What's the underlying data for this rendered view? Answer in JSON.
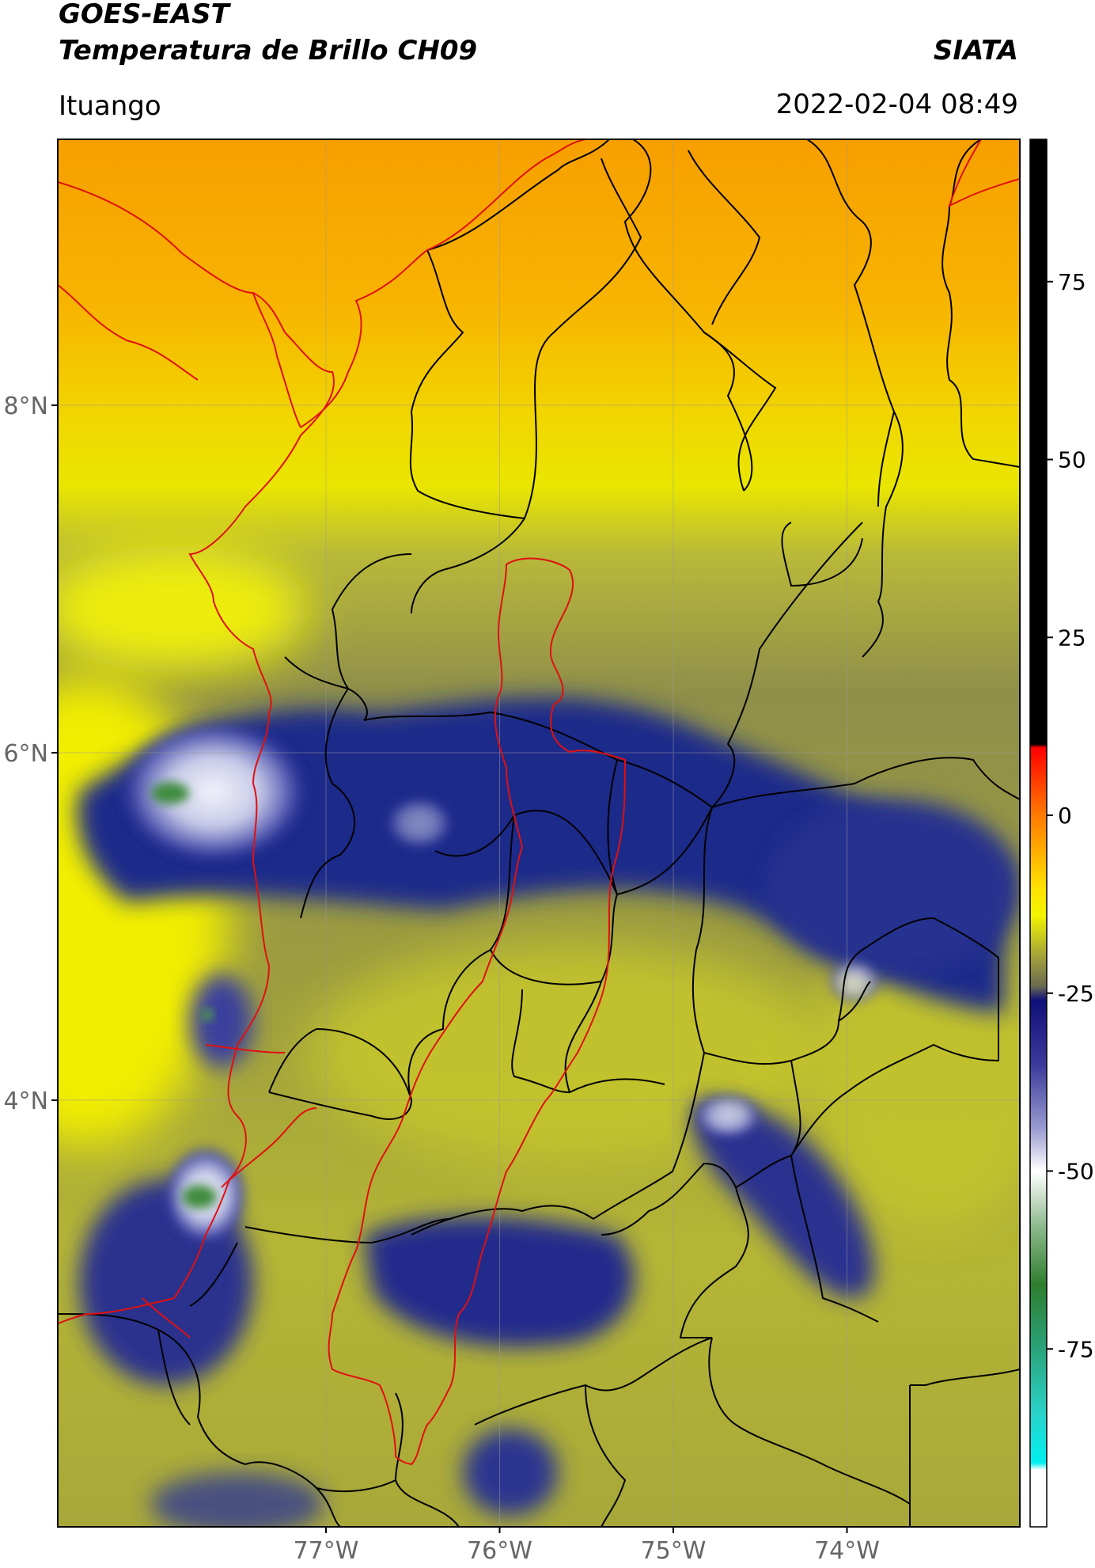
{
  "header": {
    "title_line1": "GOES-EAST",
    "title_line2": "Temperatura de Brillo CH09",
    "agency": "SIATA",
    "region": "Ituango",
    "datetime": "2022-02-04 08:49"
  },
  "map": {
    "lat_ticks": [
      {
        "value": 8,
        "label": "8°N"
      },
      {
        "value": 6,
        "label": "6°N"
      },
      {
        "value": 4,
        "label": "4°N"
      }
    ],
    "lon_ticks": [
      {
        "value": -77,
        "label": "77°W"
      },
      {
        "value": -76,
        "label": "76°W"
      },
      {
        "value": -75,
        "label": "75°W"
      },
      {
        "value": -74,
        "label": "74°W"
      }
    ],
    "colors": {
      "north_warm": "#f7a300",
      "yellow": "#f2f200",
      "olive": "#a8a832",
      "navy": "#1e2a8c",
      "cold_white": "#e8ebf5",
      "cold_green": "#3c8a3c",
      "border_black": "#000000",
      "border_red": "#e01010"
    }
  },
  "colorbar": {
    "ticks": [
      "75",
      "50",
      "25",
      "0",
      "-25",
      "-50",
      "-75"
    ],
    "tick_values": [
      75,
      50,
      25,
      0,
      -25,
      -50,
      -75
    ],
    "range": [
      -100,
      95
    ],
    "stops": [
      {
        "v": 95,
        "c": "#000000"
      },
      {
        "v": 10,
        "c": "#000000"
      },
      {
        "v": 9.5,
        "c": "#ff0000"
      },
      {
        "v": 0,
        "c": "#ff7a00"
      },
      {
        "v": -10,
        "c": "#ffe000"
      },
      {
        "v": -14,
        "c": "#f4f400"
      },
      {
        "v": -20,
        "c": "#a0a03a"
      },
      {
        "v": -24,
        "c": "#6a6a50"
      },
      {
        "v": -26,
        "c": "#10107a"
      },
      {
        "v": -35,
        "c": "#3a3a9c"
      },
      {
        "v": -44,
        "c": "#9a9ad0"
      },
      {
        "v": -50,
        "c": "#ffffff"
      },
      {
        "v": -58,
        "c": "#8ab88a"
      },
      {
        "v": -66,
        "c": "#2e7e2e"
      },
      {
        "v": -75,
        "c": "#2aa37a"
      },
      {
        "v": -84,
        "c": "#2ad2c8"
      },
      {
        "v": -91,
        "c": "#00f0f0"
      },
      {
        "v": -92,
        "c": "#ffffff"
      },
      {
        "v": -100,
        "c": "#ffffff"
      }
    ]
  }
}
